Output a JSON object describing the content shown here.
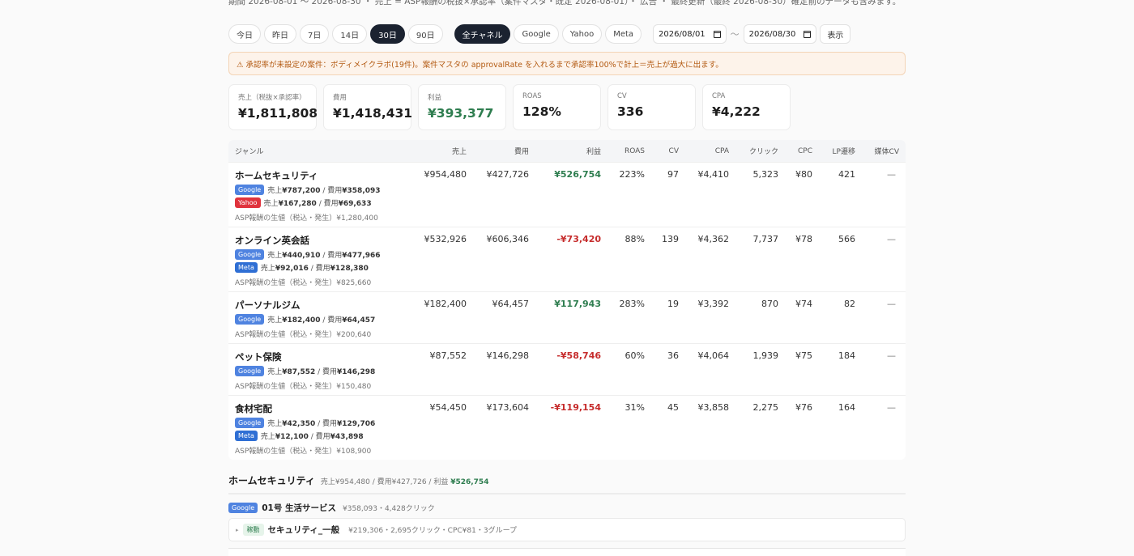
{
  "top_note": "期間 2026-08-01 〜 2026-08-30 ・ 売上 = ASP報酬の税抜×承認率（案件マスタ・既定 2026-08-01）・ 広告 ・ 最終更新（最終 2026-08-30）確定前のデータも含みます。",
  "filters": {
    "ranges": [
      "今日",
      "昨日",
      "7日",
      "14日",
      "30日",
      "90日"
    ],
    "active_range": "30日",
    "channels": [
      "全チャネル",
      "Google",
      "Yahoo",
      "Meta"
    ],
    "active_channel": "全チャネル",
    "date_from": "2026/08/01",
    "date_sep": "〜",
    "date_to": "2026/08/30",
    "show_label": "表示"
  },
  "alert": {
    "icon": "warning-icon",
    "text": "⚠ 承認率が未設定の案件：ボディメイクラボ(19件)。案件マスタの approvalRate を入れるまで承認率100%で計上＝売上が過大に出ます。"
  },
  "kpis": [
    {
      "label": "売上（税抜×承認率）",
      "value": "¥1,811,808",
      "tone": "normal"
    },
    {
      "label": "費用",
      "value": "¥1,418,431",
      "tone": "normal"
    },
    {
      "label": "利益",
      "value": "¥393,377",
      "tone": "green"
    },
    {
      "label": "ROAS",
      "value": "128%",
      "tone": "normal"
    },
    {
      "label": "CV",
      "value": "336",
      "tone": "normal"
    },
    {
      "label": "CPA",
      "value": "¥4,222",
      "tone": "normal"
    }
  ],
  "table": {
    "headers": {
      "genre": "ジャンル",
      "sales": "売上",
      "cost": "費用",
      "profit": "利益",
      "roas": "ROAS",
      "cv": "CV",
      "cpa": "CPA",
      "clicks": "クリック",
      "cpc": "CPC",
      "lp": "LP遷移",
      "media_cv": "媒体CV"
    },
    "rows": [
      {
        "genre": "ホームセキュリティ",
        "channels": [
          {
            "name": "Google",
            "text": "売上",
            "sales": "¥787,200",
            "sep": " / 費用",
            "cost": "¥358,093"
          },
          {
            "name": "Yahoo",
            "text": "売上",
            "sales": "¥167,280",
            "sep": " / 費用",
            "cost": "¥69,633"
          }
        ],
        "asp": "ASP報酬の生値（税込・発生）¥1,280,400",
        "sales": "¥954,480",
        "cost": "¥427,726",
        "profit": "¥526,754",
        "profit_sign": "pos",
        "roas": "223%",
        "cv": "97",
        "cpa": "¥4,410",
        "clicks": "5,323",
        "cpc": "¥80",
        "lp": "421",
        "media_cv": "—"
      },
      {
        "genre": "オンライン英会話",
        "channels": [
          {
            "name": "Google",
            "text": "売上",
            "sales": "¥440,910",
            "sep": " / 費用",
            "cost": "¥477,966"
          },
          {
            "name": "Meta",
            "text": "売上",
            "sales": "¥92,016",
            "sep": " / 費用",
            "cost": "¥128,380"
          }
        ],
        "asp": "ASP報酬の生値（税込・発生）¥825,660",
        "sales": "¥532,926",
        "cost": "¥606,346",
        "profit": "-¥73,420",
        "profit_sign": "neg",
        "roas": "88%",
        "cv": "139",
        "cpa": "¥4,362",
        "clicks": "7,737",
        "cpc": "¥78",
        "lp": "566",
        "media_cv": "—"
      },
      {
        "genre": "パーソナルジム",
        "channels": [
          {
            "name": "Google",
            "text": "売上",
            "sales": "¥182,400",
            "sep": " / 費用",
            "cost": "¥64,457"
          }
        ],
        "asp": "ASP報酬の生値（税込・発生）¥200,640",
        "sales": "¥182,400",
        "cost": "¥64,457",
        "profit": "¥117,943",
        "profit_sign": "pos",
        "roas": "283%",
        "cv": "19",
        "cpa": "¥3,392",
        "clicks": "870",
        "cpc": "¥74",
        "lp": "82",
        "media_cv": "—"
      },
      {
        "genre": "ペット保険",
        "channels": [
          {
            "name": "Google",
            "text": "売上",
            "sales": "¥87,552",
            "sep": " / 費用",
            "cost": "¥146,298"
          }
        ],
        "asp": "ASP報酬の生値（税込・発生）¥150,480",
        "sales": "¥87,552",
        "cost": "¥146,298",
        "profit": "-¥58,746",
        "profit_sign": "neg",
        "roas": "60%",
        "cv": "36",
        "cpa": "¥4,064",
        "clicks": "1,939",
        "cpc": "¥75",
        "lp": "184",
        "media_cv": "—"
      },
      {
        "genre": "食材宅配",
        "channels": [
          {
            "name": "Google",
            "text": "売上",
            "sales": "¥42,350",
            "sep": " / 費用",
            "cost": "¥129,706"
          },
          {
            "name": "Meta",
            "text": "売上",
            "sales": "¥12,100",
            "sep": " / 費用",
            "cost": "¥43,898"
          }
        ],
        "asp": "ASP報酬の生値（税込・発生）¥108,900",
        "sales": "¥54,450",
        "cost": "¥173,604",
        "profit": "-¥119,154",
        "profit_sign": "neg",
        "roas": "31%",
        "cv": "45",
        "cpa": "¥3,858",
        "clicks": "2,275",
        "cpc": "¥76",
        "lp": "164",
        "media_cv": "—"
      }
    ]
  },
  "detail": {
    "title": "ホームセキュリティ",
    "summary_prefix": "売上¥954,480 / 費用¥427,726 / 利益",
    "summary_profit": "¥526,754",
    "account": {
      "channel": "Google",
      "name": "01号 生活サービス",
      "meta": "¥358,093・4,428クリック"
    },
    "campaign": {
      "arrow": "▸",
      "status": "稼動",
      "name": "セキュリティ_一般",
      "meta": "¥219,306・2,695クリック・CPC¥81・3グループ"
    }
  },
  "colors": {
    "accent_dark": "#1b2230",
    "profit_green": "#2e7d4f",
    "loss_red": "#c62c2c",
    "google": "#4f83e0",
    "yahoo": "#e0333d",
    "meta": "#2f6fd4"
  }
}
